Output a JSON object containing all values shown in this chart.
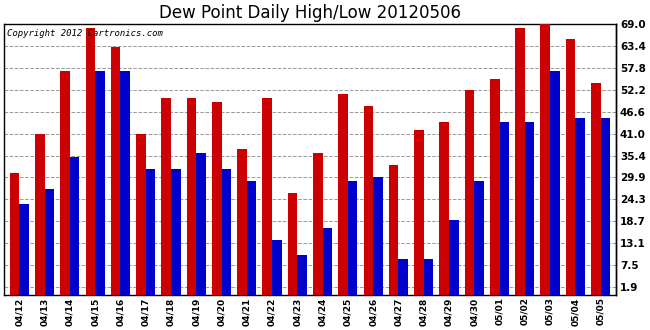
{
  "title": "Dew Point Daily High/Low 20120506",
  "copyright": "Copyright 2012 Cartronics.com",
  "dates": [
    "04/12",
    "04/13",
    "04/14",
    "04/15",
    "04/16",
    "04/17",
    "04/18",
    "04/19",
    "04/20",
    "04/21",
    "04/22",
    "04/23",
    "04/24",
    "04/25",
    "04/26",
    "04/27",
    "04/28",
    "04/29",
    "04/30",
    "05/01",
    "05/02",
    "05/03",
    "05/04",
    "05/05"
  ],
  "high": [
    31,
    41,
    57,
    68,
    63,
    41,
    50,
    50,
    49,
    37,
    50,
    26,
    36,
    51,
    48,
    33,
    42,
    44,
    52,
    55,
    68,
    70,
    65,
    54
  ],
  "low": [
    23,
    27,
    35,
    57,
    57,
    32,
    32,
    36,
    32,
    29,
    14,
    10,
    17,
    29,
    30,
    9,
    9,
    19,
    29,
    44,
    44,
    57,
    45,
    45
  ],
  "yticks": [
    1.9,
    7.5,
    13.1,
    18.7,
    24.3,
    29.9,
    35.4,
    41.0,
    46.6,
    52.2,
    57.8,
    63.4,
    69.0
  ],
  "ymin": 0,
  "ymax": 69.0,
  "yaxis_min": 1.9,
  "bar_width": 0.38,
  "high_color": "#cc0000",
  "low_color": "#0000cc",
  "bg_color": "#ffffff",
  "grid_color": "#999999",
  "title_fontsize": 12
}
